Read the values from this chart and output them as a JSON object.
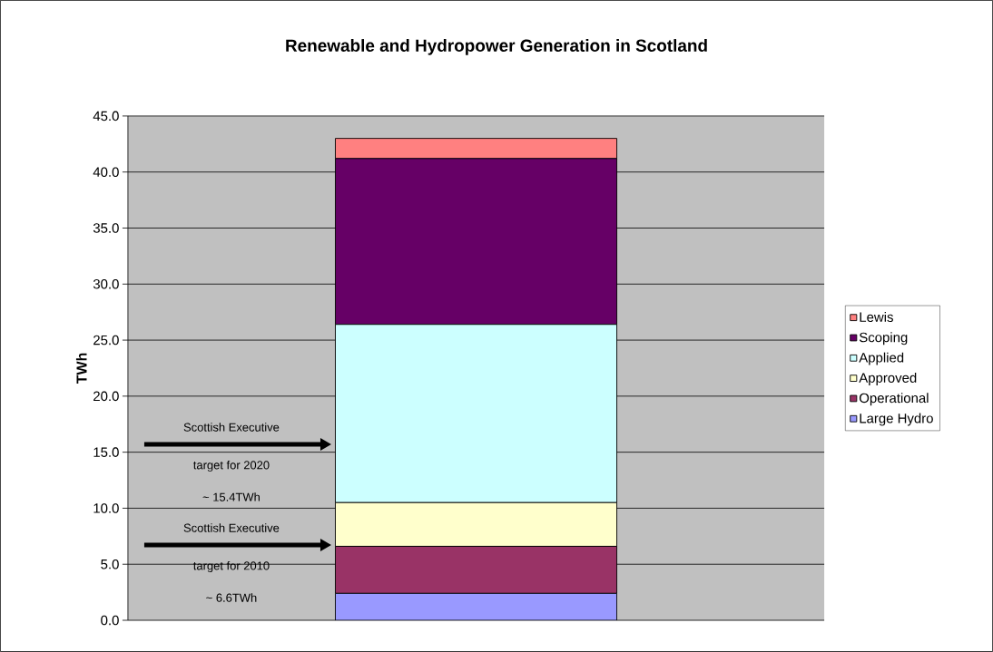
{
  "chart_data": {
    "type": "bar",
    "stacked": true,
    "title": "Renewable and Hydropower Generation in Scotland",
    "ylabel": "TWh",
    "categories": [
      null
    ],
    "series": [
      {
        "name": "Large Hydro",
        "color": "#9999ff",
        "values": [
          2.4
        ]
      },
      {
        "name": "Operational",
        "color": "#993366",
        "values": [
          4.2
        ]
      },
      {
        "name": "Approved",
        "color": "#ffffcc",
        "values": [
          3.9
        ]
      },
      {
        "name": "Applied",
        "color": "#ccffff",
        "values": [
          15.9
        ]
      },
      {
        "name": "Scoping",
        "color": "#660066",
        "values": [
          14.8
        ]
      },
      {
        "name": "Lewis",
        "color": "#ff8080",
        "values": [
          1.8
        ]
      }
    ],
    "ylim": [
      0,
      45
    ],
    "yticks": [
      {
        "value": 0,
        "label": "0.0"
      },
      {
        "value": 5,
        "label": "5.0"
      },
      {
        "value": 10,
        "label": "10.0"
      },
      {
        "value": 15,
        "label": "15.0"
      },
      {
        "value": 20,
        "label": "20.0"
      },
      {
        "value": 25,
        "label": "25.0"
      },
      {
        "value": 30,
        "label": "30.0"
      },
      {
        "value": 35,
        "label": "35.0"
      },
      {
        "value": 40,
        "label": "40.0"
      },
      {
        "value": 45,
        "label": "45.0"
      }
    ],
    "grid": "y",
    "legend": "right",
    "annotations": [
      "Scottish Executive",
      "target for 2020",
      "~ 15.4TWh",
      "Scottish Executive",
      "target for 2010",
      "~ 6.6TWh"
    ]
  }
}
